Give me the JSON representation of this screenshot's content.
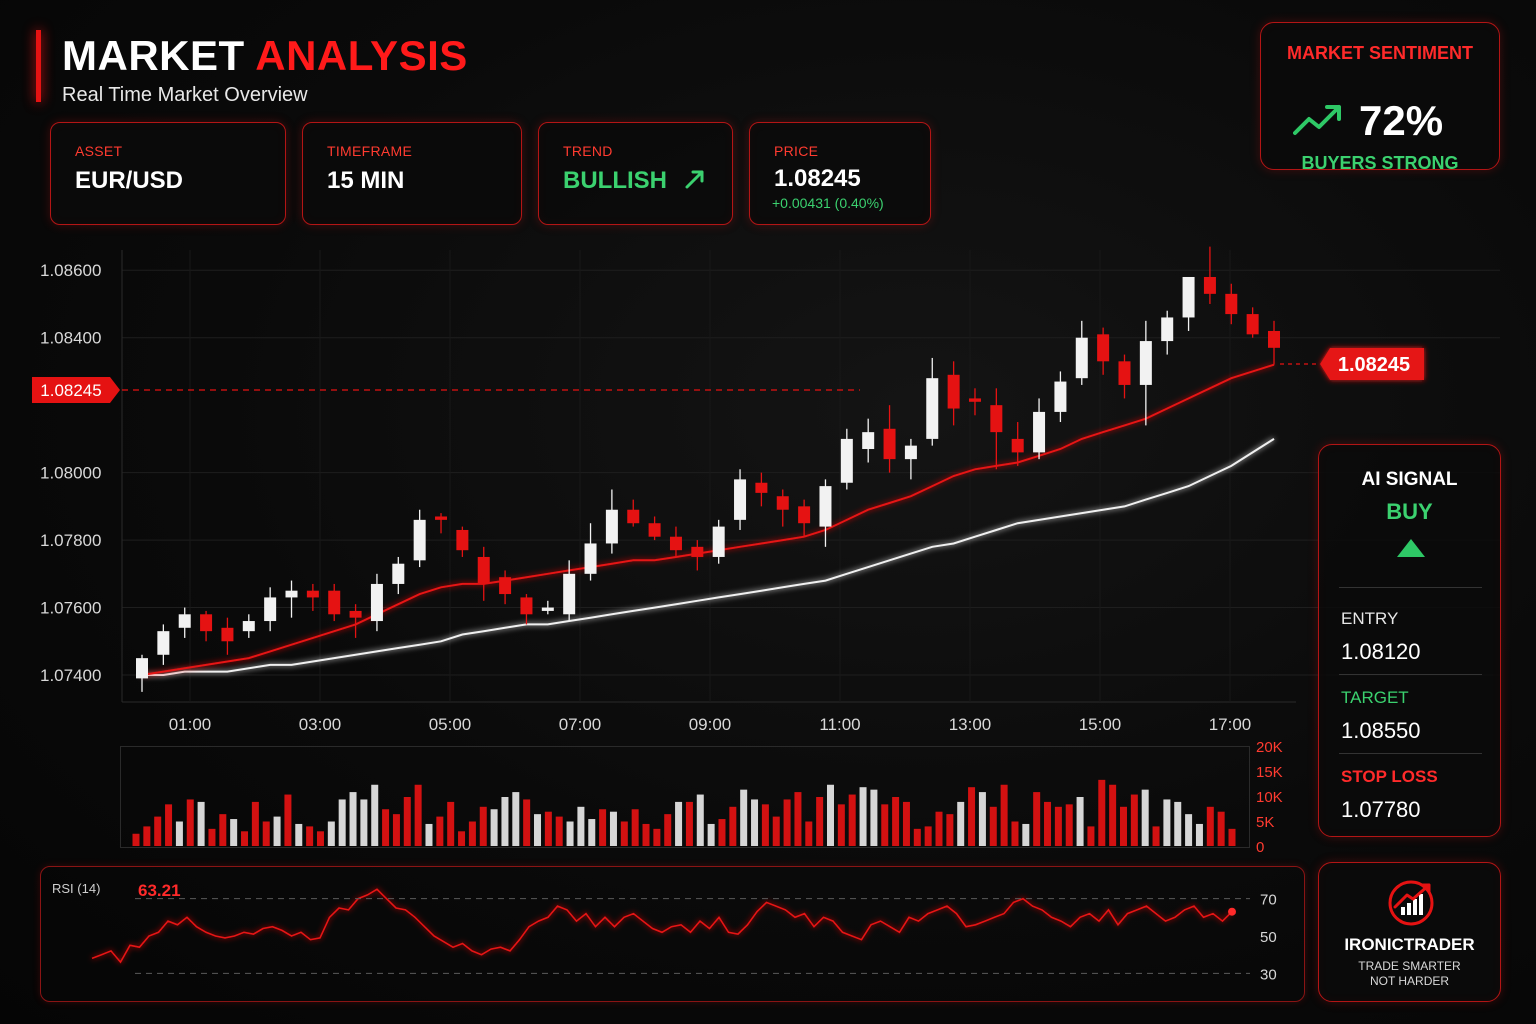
{
  "header": {
    "title_white": "MARKET ",
    "title_red": "ANALYSIS",
    "subtitle": "Real Time Market Overview"
  },
  "cards": {
    "asset": {
      "label": "ASSET",
      "value": "EUR/USD"
    },
    "timeframe": {
      "label": "TIMEFRAME",
      "value": "15 MIN"
    },
    "trend": {
      "label": "TREND",
      "value": "BULLISH"
    },
    "price": {
      "label": "PRICE",
      "value": "1.08245",
      "change": "+0.00431 (0.40%)"
    }
  },
  "sentiment": {
    "label": "MARKET SENTIMENT",
    "percent": "72%",
    "status": "BUYERS STRONG"
  },
  "signal": {
    "title": "AI SIGNAL",
    "action": "BUY",
    "entry_label": "ENTRY",
    "entry_value": "1.08120",
    "target_label": "TARGET",
    "target_value": "1.08550",
    "stop_label": "STOP LOSS",
    "stop_value": "1.07780"
  },
  "brand": {
    "name": "IRONICTRADER",
    "tagline_1": "TRADE SMARTER",
    "tagline_2": "NOT HARDER"
  },
  "colors": {
    "accent": "#e51212",
    "bull": "#f2f2f2",
    "bear": "#e51212",
    "green": "#3bd16f"
  },
  "chart_data": [
    {
      "type": "candlestick",
      "title": "",
      "y_ticks": [
        "1.07400",
        "1.07600",
        "1.07800",
        "1.08000",
        "1.08400",
        "1.08600"
      ],
      "x_ticks": [
        "01:00",
        "03:00",
        "05:00",
        "07:00",
        "09:00",
        "11:00",
        "13:00",
        "15:00",
        "17:00"
      ],
      "current_price_label": "1.08245",
      "current_price": 1.08245,
      "ylim": [
        1.0732,
        1.0866
      ],
      "candles": [
        {
          "o": 1.0739,
          "h": 1.0746,
          "l": 1.0735,
          "c": 1.0745
        },
        {
          "o": 1.0746,
          "h": 1.0755,
          "l": 1.0743,
          "c": 1.0753
        },
        {
          "o": 1.0754,
          "h": 1.076,
          "l": 1.0751,
          "c": 1.0758
        },
        {
          "o": 1.0758,
          "h": 1.0759,
          "l": 1.075,
          "c": 1.0753
        },
        {
          "o": 1.0754,
          "h": 1.0757,
          "l": 1.0746,
          "c": 1.075
        },
        {
          "o": 1.0753,
          "h": 1.0758,
          "l": 1.0751,
          "c": 1.0756
        },
        {
          "o": 1.0756,
          "h": 1.0766,
          "l": 1.0753,
          "c": 1.0763
        },
        {
          "o": 1.0763,
          "h": 1.0768,
          "l": 1.0757,
          "c": 1.0765
        },
        {
          "o": 1.0765,
          "h": 1.0767,
          "l": 1.0759,
          "c": 1.0763
        },
        {
          "o": 1.0765,
          "h": 1.0767,
          "l": 1.0756,
          "c": 1.0758
        },
        {
          "o": 1.0759,
          "h": 1.0761,
          "l": 1.0751,
          "c": 1.0757
        },
        {
          "o": 1.0756,
          "h": 1.077,
          "l": 1.0753,
          "c": 1.0767
        },
        {
          "o": 1.0767,
          "h": 1.0775,
          "l": 1.0764,
          "c": 1.0773
        },
        {
          "o": 1.0774,
          "h": 1.0789,
          "l": 1.0772,
          "c": 1.0786
        },
        {
          "o": 1.0787,
          "h": 1.0788,
          "l": 1.0782,
          "c": 1.0786
        },
        {
          "o": 1.0783,
          "h": 1.0784,
          "l": 1.0775,
          "c": 1.0777
        },
        {
          "o": 1.0775,
          "h": 1.0778,
          "l": 1.0762,
          "c": 1.0767
        },
        {
          "o": 1.0769,
          "h": 1.0771,
          "l": 1.0761,
          "c": 1.0764
        },
        {
          "o": 1.0763,
          "h": 1.0764,
          "l": 1.0755,
          "c": 1.0758
        },
        {
          "o": 1.0759,
          "h": 1.0762,
          "l": 1.0758,
          "c": 1.076
        },
        {
          "o": 1.0758,
          "h": 1.0774,
          "l": 1.0756,
          "c": 1.077
        },
        {
          "o": 1.077,
          "h": 1.0785,
          "l": 1.0768,
          "c": 1.0779
        },
        {
          "o": 1.0779,
          "h": 1.0795,
          "l": 1.0776,
          "c": 1.0789
        },
        {
          "o": 1.0789,
          "h": 1.0792,
          "l": 1.0784,
          "c": 1.0785
        },
        {
          "o": 1.0785,
          "h": 1.0787,
          "l": 1.078,
          "c": 1.0781
        },
        {
          "o": 1.0781,
          "h": 1.0784,
          "l": 1.0775,
          "c": 1.0777
        },
        {
          "o": 1.0778,
          "h": 1.078,
          "l": 1.0771,
          "c": 1.0775
        },
        {
          "o": 1.0775,
          "h": 1.0786,
          "l": 1.0773,
          "c": 1.0784
        },
        {
          "o": 1.0786,
          "h": 1.0801,
          "l": 1.0783,
          "c": 1.0798
        },
        {
          "o": 1.0797,
          "h": 1.08,
          "l": 1.079,
          "c": 1.0794
        },
        {
          "o": 1.0793,
          "h": 1.0795,
          "l": 1.0784,
          "c": 1.0789
        },
        {
          "o": 1.079,
          "h": 1.0792,
          "l": 1.0781,
          "c": 1.0785
        },
        {
          "o": 1.0784,
          "h": 1.0798,
          "l": 1.0778,
          "c": 1.0796
        },
        {
          "o": 1.0797,
          "h": 1.0813,
          "l": 1.0795,
          "c": 1.081
        },
        {
          "o": 1.0807,
          "h": 1.0816,
          "l": 1.0803,
          "c": 1.0812
        },
        {
          "o": 1.0813,
          "h": 1.082,
          "l": 1.08,
          "c": 1.0804
        },
        {
          "o": 1.0804,
          "h": 1.081,
          "l": 1.0798,
          "c": 1.0808
        },
        {
          "o": 1.081,
          "h": 1.0834,
          "l": 1.0808,
          "c": 1.0828
        },
        {
          "o": 1.0829,
          "h": 1.0833,
          "l": 1.0814,
          "c": 1.0819
        },
        {
          "o": 1.0822,
          "h": 1.0825,
          "l": 1.0817,
          "c": 1.0821
        },
        {
          "o": 1.082,
          "h": 1.0825,
          "l": 1.0801,
          "c": 1.0812
        },
        {
          "o": 1.081,
          "h": 1.0815,
          "l": 1.0802,
          "c": 1.0806
        },
        {
          "o": 1.0806,
          "h": 1.0822,
          "l": 1.0804,
          "c": 1.0818
        },
        {
          "o": 1.0818,
          "h": 1.083,
          "l": 1.0815,
          "c": 1.0827
        },
        {
          "o": 1.0828,
          "h": 1.0845,
          "l": 1.0826,
          "c": 1.084
        },
        {
          "o": 1.0841,
          "h": 1.0843,
          "l": 1.0829,
          "c": 1.0833
        },
        {
          "o": 1.0833,
          "h": 1.0835,
          "l": 1.0822,
          "c": 1.0826
        },
        {
          "o": 1.0826,
          "h": 1.0845,
          "l": 1.0814,
          "c": 1.0839
        },
        {
          "o": 1.0839,
          "h": 1.0848,
          "l": 1.0835,
          "c": 1.0846
        },
        {
          "o": 1.0846,
          "h": 1.0858,
          "l": 1.0842,
          "c": 1.0858
        },
        {
          "o": 1.0858,
          "h": 1.0867,
          "l": 1.085,
          "c": 1.0853
        },
        {
          "o": 1.0853,
          "h": 1.0856,
          "l": 1.0844,
          "c": 1.0847
        },
        {
          "o": 1.0847,
          "h": 1.0849,
          "l": 1.084,
          "c": 1.0841
        },
        {
          "o": 1.0842,
          "h": 1.0845,
          "l": 1.0832,
          "c": 1.0837
        }
      ],
      "ma_fast": [
        1.074,
        1.0741,
        1.0742,
        1.0743,
        1.0744,
        1.0745,
        1.0747,
        1.0749,
        1.0751,
        1.0753,
        1.0755,
        1.0758,
        1.0761,
        1.0764,
        1.0766,
        1.0767,
        1.0767,
        1.0768,
        1.0769,
        1.077,
        1.0771,
        1.0772,
        1.0773,
        1.0774,
        1.0774,
        1.0775,
        1.0776,
        1.0777,
        1.0778,
        1.0779,
        1.078,
        1.0781,
        1.0783,
        1.0786,
        1.0789,
        1.0791,
        1.0793,
        1.0796,
        1.0799,
        1.0801,
        1.0802,
        1.0803,
        1.0805,
        1.0807,
        1.081,
        1.0812,
        1.0814,
        1.0816,
        1.0819,
        1.0822,
        1.0825,
        1.0828,
        1.083,
        1.0832
      ],
      "ma_slow": [
        1.074,
        1.074,
        1.0741,
        1.0741,
        1.0741,
        1.0742,
        1.0743,
        1.0743,
        1.0744,
        1.0745,
        1.0746,
        1.0747,
        1.0748,
        1.0749,
        1.075,
        1.0752,
        1.0753,
        1.0754,
        1.0755,
        1.0755,
        1.0756,
        1.0757,
        1.0758,
        1.0759,
        1.076,
        1.0761,
        1.0762,
        1.0763,
        1.0764,
        1.0765,
        1.0766,
        1.0767,
        1.0768,
        1.077,
        1.0772,
        1.0774,
        1.0776,
        1.0778,
        1.0779,
        1.0781,
        1.0783,
        1.0785,
        1.0786,
        1.0787,
        1.0788,
        1.0789,
        1.079,
        1.0792,
        1.0794,
        1.0796,
        1.0799,
        1.0802,
        1.0806,
        1.081
      ]
    },
    {
      "type": "bar",
      "title": "",
      "y_ticks": [
        "20K",
        "15K",
        "10K",
        "5K",
        "0"
      ],
      "ylim": [
        0,
        20000
      ],
      "values": [
        2500,
        4000,
        6000,
        8500,
        5000,
        9500,
        9000,
        3500,
        6500,
        5500,
        3000,
        9000,
        5000,
        6000,
        10500,
        4500,
        4000,
        3000,
        5000,
        9500,
        11000,
        9500,
        12500,
        7500,
        6500,
        10000,
        12500,
        4500,
        6000,
        9000,
        3000,
        5000,
        8000,
        7500,
        10000,
        11000,
        9500,
        6500,
        7000,
        6000,
        5000,
        8000,
        5500,
        7500,
        7000,
        5000,
        7500,
        4500,
        3500,
        6500,
        9000,
        9000,
        10500,
        4500,
        5500,
        8000,
        11500,
        9500,
        8500,
        6000,
        9500,
        11000,
        5000,
        10000,
        12500,
        8500,
        10500,
        12000,
        11500,
        8500,
        10000,
        9000,
        3500,
        4000,
        7000,
        6500,
        9000,
        12000,
        11000,
        8000,
        12500,
        5000,
        4500,
        11000,
        9000,
        8000,
        8500,
        10000,
        4000,
        13500,
        12500,
        8000,
        10500,
        11500,
        4000,
        9500,
        9000,
        6500,
        4500,
        8000,
        7000,
        3500
      ],
      "bull_flags": [
        0,
        0,
        0,
        0,
        1,
        0,
        1,
        0,
        0,
        1,
        0,
        0,
        0,
        1,
        0,
        1,
        0,
        0,
        1,
        1,
        1,
        1,
        1,
        0,
        0,
        0,
        0,
        1,
        0,
        0,
        0,
        0,
        0,
        1,
        1,
        1,
        0,
        1,
        0,
        0,
        1,
        1,
        1,
        0,
        1,
        0,
        0,
        0,
        0,
        0,
        1,
        0,
        1,
        1,
        0,
        0,
        1,
        1,
        0,
        0,
        0,
        0,
        0,
        0,
        1,
        0,
        0,
        1,
        1,
        0,
        0,
        0,
        0,
        0,
        0,
        0,
        1,
        0,
        1,
        0,
        0,
        0,
        1,
        0,
        0,
        0,
        0,
        1,
        0,
        0,
        0,
        0,
        0,
        1,
        0,
        1,
        1,
        1,
        1,
        0,
        0,
        0
      ]
    },
    {
      "type": "line",
      "title": "RSI (14)",
      "value_label": "63.21",
      "y_ticks": [
        "70",
        "50",
        "30"
      ],
      "ylim": [
        20,
        80
      ],
      "values": [
        38,
        40,
        42,
        36,
        45,
        44,
        50,
        52,
        58,
        56,
        60,
        55,
        52,
        50,
        49,
        50,
        52,
        51,
        54,
        55,
        53,
        50,
        52,
        48,
        49,
        60,
        65,
        64,
        70,
        72,
        75,
        70,
        65,
        64,
        60,
        55,
        50,
        47,
        44,
        46,
        42,
        40,
        43,
        44,
        42,
        48,
        55,
        58,
        60,
        66,
        64,
        58,
        62,
        55,
        60,
        55,
        60,
        62,
        58,
        54,
        52,
        55,
        56,
        52,
        58,
        54,
        60,
        52,
        51,
        56,
        63,
        68,
        66,
        64,
        60,
        62,
        55,
        60,
        58,
        52,
        50,
        48,
        56,
        58,
        55,
        52,
        60,
        58,
        62,
        64,
        66,
        62,
        55,
        56,
        58,
        60,
        62,
        68,
        70,
        66,
        64,
        60,
        58,
        55,
        60,
        62,
        58,
        64,
        56,
        62,
        64,
        66,
        62,
        58,
        60,
        64,
        66,
        60,
        62,
        58,
        63
      ]
    }
  ]
}
